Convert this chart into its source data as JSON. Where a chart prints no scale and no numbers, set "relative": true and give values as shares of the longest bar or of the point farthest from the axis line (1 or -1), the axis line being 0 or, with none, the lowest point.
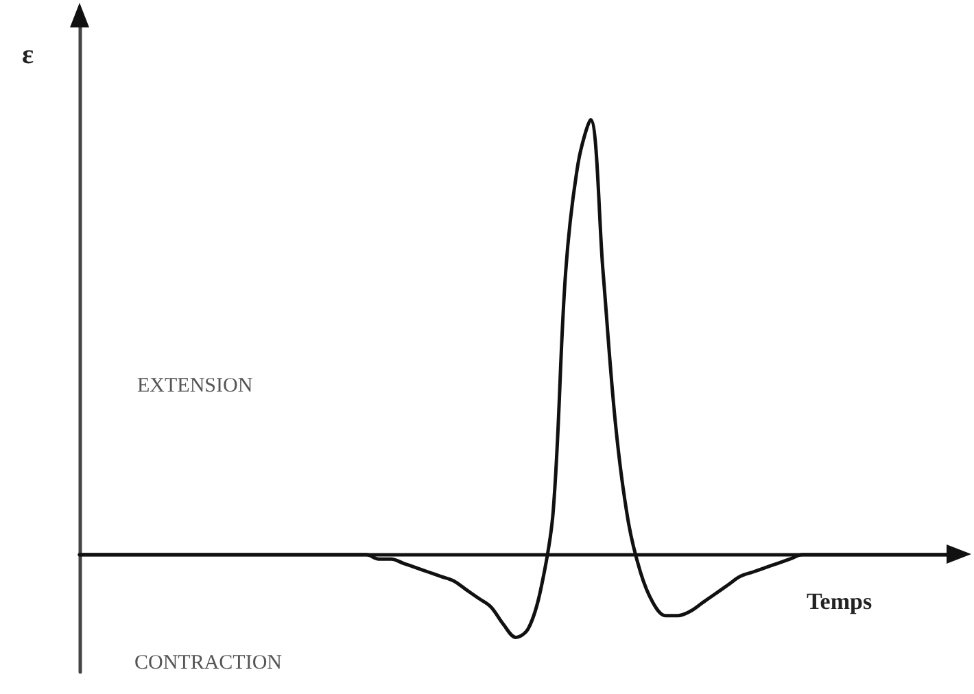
{
  "chart_data": {
    "type": "line",
    "relative": true,
    "xlabel": "Temps",
    "ylabel": "ε",
    "annotations": [
      "EXTENSION",
      "CONTRACTION"
    ],
    "categories": [
      null,
      null,
      null,
      null,
      null,
      null,
      null,
      null,
      null,
      null,
      null,
      null,
      null,
      null,
      null,
      null,
      null,
      null,
      null,
      null,
      null,
      null,
      null,
      null,
      null,
      null,
      null,
      null,
      null,
      null,
      null,
      null,
      null,
      null,
      null,
      null,
      null,
      null,
      null,
      null,
      null,
      null,
      null,
      null,
      null,
      null,
      null,
      null,
      null,
      null,
      null,
      null,
      null,
      null,
      null,
      null,
      null,
      null,
      null,
      null,
      null,
      null,
      null,
      null,
      null,
      null,
      null,
      null,
      null,
      null,
      null
    ],
    "series": [
      {
        "color": "#111111",
        "values": [
          0,
          0,
          0,
          0,
          0,
          0,
          0,
          0,
          0,
          0,
          0,
          0,
          0,
          0,
          0,
          0,
          0,
          0,
          0,
          0,
          0,
          0,
          0,
          0,
          -0.01,
          -0.01,
          -0.02,
          -0.03,
          -0.04,
          -0.05,
          -0.06,
          -0.08,
          -0.1,
          -0.12,
          -0.16,
          -0.19,
          -0.17,
          -0.08,
          0.1,
          0.65,
          0.9,
          1,
          0.65,
          0.3,
          0.08,
          -0.04,
          -0.11,
          -0.14,
          -0.14,
          -0.13,
          -0.11,
          -0.09,
          -0.07,
          -0.05,
          -0.04,
          -0.03,
          -0.02,
          -0.01,
          0,
          0,
          0,
          0,
          0,
          0,
          0,
          0,
          0,
          0,
          0,
          0,
          0
        ]
      }
    ],
    "grid": false,
    "marker": "none",
    "line_style": "solid"
  }
}
